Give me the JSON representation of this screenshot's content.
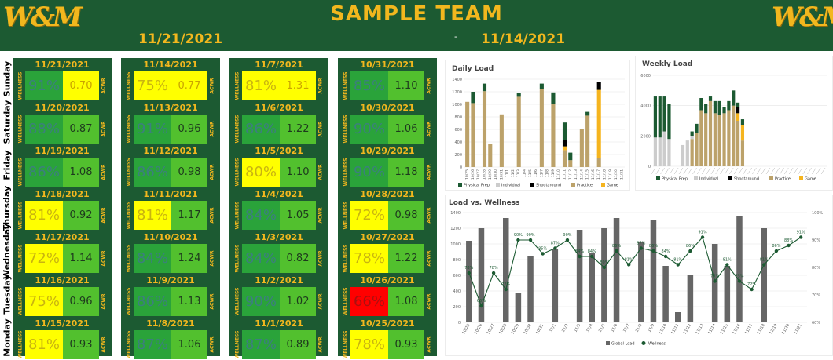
{
  "header": {
    "logo_text": "W&M",
    "title": "SAMPLE TEAM",
    "date_left": "11/21/2021",
    "separator": "-",
    "date_right": "11/14/2021"
  },
  "days": [
    "Sunday",
    "Saturday",
    "Friday",
    "Thursday",
    "Wednesday",
    "Tuesday",
    "Monday"
  ],
  "labels": {
    "wellness": "WELLNESS",
    "acwr": "ACWR"
  },
  "colors": {
    "dark_green": "#1c5a32",
    "gold": "#f2b71e",
    "wellness_yellow": "#ffff00",
    "acwr_green": "#52c02e",
    "wellness_green": "#2aa33a",
    "wellness_red": "#ff0000",
    "bar_gray": "#666666",
    "physical_prep": "#1c5a32",
    "individual": "#cccccc",
    "shootaround": "#000000",
    "practice": "#bca26a",
    "game": "#f5b41e"
  },
  "weeks": [
    {
      "cells": [
        {
          "date": "11/21/2021",
          "wellness": "91%",
          "acwr": "0.70",
          "wellness_color": "green",
          "acwr_color": "yellow"
        },
        {
          "date": "11/20/2021",
          "wellness": "88%",
          "acwr": "0.87",
          "wellness_color": "green",
          "acwr_color": "green"
        },
        {
          "date": "11/19/2021",
          "wellness": "86%",
          "acwr": "1.08",
          "wellness_color": "green",
          "acwr_color": "green"
        },
        {
          "date": "11/18/2021",
          "wellness": "81%",
          "acwr": "0.92",
          "wellness_color": "yellow",
          "acwr_color": "green"
        },
        {
          "date": "11/17/2021",
          "wellness": "72%",
          "acwr": "1.14",
          "wellness_color": "yellow",
          "acwr_color": "green"
        },
        {
          "date": "11/16/2021",
          "wellness": "75%",
          "acwr": "0.96",
          "wellness_color": "yellow",
          "acwr_color": "green"
        },
        {
          "date": "11/15/2021",
          "wellness": "81%",
          "acwr": "0.93",
          "wellness_color": "yellow",
          "acwr_color": "green"
        }
      ]
    },
    {
      "cells": [
        {
          "date": "11/14/2021",
          "wellness": "75%",
          "acwr": "0.77",
          "wellness_color": "yellow",
          "acwr_color": "yellow"
        },
        {
          "date": "11/13/2021",
          "wellness": "91%",
          "acwr": "0.96",
          "wellness_color": "green",
          "acwr_color": "green"
        },
        {
          "date": "11/12/2021",
          "wellness": "86%",
          "acwr": "0.98",
          "wellness_color": "green",
          "acwr_color": "green"
        },
        {
          "date": "11/11/2021",
          "wellness": "81%",
          "acwr": "1.17",
          "wellness_color": "yellow",
          "acwr_color": "green"
        },
        {
          "date": "11/10/2021",
          "wellness": "84%",
          "acwr": "1.24",
          "wellness_color": "green",
          "acwr_color": "green"
        },
        {
          "date": "11/9/2021",
          "wellness": "86%",
          "acwr": "1.13",
          "wellness_color": "green",
          "acwr_color": "green"
        },
        {
          "date": "11/8/2021",
          "wellness": "87%",
          "acwr": "1.06",
          "wellness_color": "green",
          "acwr_color": "green"
        }
      ]
    },
    {
      "cells": [
        {
          "date": "11/7/2021",
          "wellness": "81%",
          "acwr": "1.31",
          "wellness_color": "yellow",
          "acwr_color": "yellow"
        },
        {
          "date": "11/6/2021",
          "wellness": "86%",
          "acwr": "1.22",
          "wellness_color": "green",
          "acwr_color": "green"
        },
        {
          "date": "11/5/2021",
          "wellness": "80%",
          "acwr": "1.10",
          "wellness_color": "yellow",
          "acwr_color": "green"
        },
        {
          "date": "11/4/2021",
          "wellness": "84%",
          "acwr": "1.05",
          "wellness_color": "green",
          "acwr_color": "green"
        },
        {
          "date": "11/3/2021",
          "wellness": "84%",
          "acwr": "0.82",
          "wellness_color": "green",
          "acwr_color": "green"
        },
        {
          "date": "11/2/2021",
          "wellness": "90%",
          "acwr": "1.02",
          "wellness_color": "green",
          "acwr_color": "green"
        },
        {
          "date": "11/1/2021",
          "wellness": "87%",
          "acwr": "0.89",
          "wellness_color": "green",
          "acwr_color": "green"
        }
      ]
    },
    {
      "cells": [
        {
          "date": "10/31/2021",
          "wellness": "85%",
          "acwr": "1.10",
          "wellness_color": "green",
          "acwr_color": "green"
        },
        {
          "date": "10/30/2021",
          "wellness": "90%",
          "acwr": "1.06",
          "wellness_color": "green",
          "acwr_color": "green"
        },
        {
          "date": "10/29/2021",
          "wellness": "90%",
          "acwr": "1.18",
          "wellness_color": "green",
          "acwr_color": "green"
        },
        {
          "date": "10/28/2021",
          "wellness": "72%",
          "acwr": "0.98",
          "wellness_color": "yellow",
          "acwr_color": "green"
        },
        {
          "date": "10/27/2021",
          "wellness": "78%",
          "acwr": "1.22",
          "wellness_color": "yellow",
          "acwr_color": "green"
        },
        {
          "date": "10/26/2021",
          "wellness": "66%",
          "acwr": "1.08",
          "wellness_color": "red",
          "acwr_color": "green"
        },
        {
          "date": "10/25/2021",
          "wellness": "78%",
          "acwr": "0.93",
          "wellness_color": "yellow",
          "acwr_color": "green"
        }
      ]
    }
  ],
  "chart_data": [
    {
      "type": "bar",
      "title": "Daily Load",
      "stacked": true,
      "categories": [
        "10/25",
        "10/26",
        "10/27",
        "10/28",
        "10/29",
        "10/30",
        "10/31",
        "11/1",
        "11/2",
        "11/3",
        "11/4",
        "11/5",
        "11/6",
        "11/7",
        "11/8",
        "11/9",
        "11/10",
        "11/11",
        "11/12",
        "11/13",
        "11/14",
        "11/15",
        "11/16",
        "11/17",
        "11/18",
        "11/19",
        "11/20",
        "11/21"
      ],
      "ylim": [
        0,
        1400
      ],
      "yticks": [
        0,
        200,
        400,
        600,
        800,
        1000,
        1200,
        1400
      ],
      "series": [
        {
          "name": "Physical Prep",
          "values": [
            0,
            180,
            0,
            120,
            0,
            0,
            0,
            0,
            0,
            60,
            0,
            0,
            0,
            90,
            0,
            180,
            0,
            280,
            120,
            0,
            0,
            60,
            0,
            0,
            0,
            0,
            0,
            0
          ]
        },
        {
          "name": "Individual",
          "values": [
            0,
            0,
            0,
            0,
            0,
            0,
            0,
            0,
            0,
            0,
            0,
            0,
            0,
            0,
            0,
            0,
            0,
            0,
            0,
            0,
            0,
            0,
            0,
            0,
            0,
            0,
            0,
            0
          ]
        },
        {
          "name": "Shootaround",
          "values": [
            0,
            0,
            0,
            0,
            0,
            0,
            0,
            0,
            0,
            0,
            0,
            0,
            0,
            0,
            0,
            0,
            0,
            100,
            0,
            0,
            0,
            0,
            0,
            120,
            0,
            0,
            0,
            0
          ]
        },
        {
          "name": "Practice",
          "values": [
            1040,
            1020,
            0,
            1210,
            370,
            0,
            840,
            0,
            0,
            1120,
            0,
            0,
            0,
            1240,
            0,
            1010,
            0,
            270,
            110,
            0,
            600,
            820,
            0,
            150,
            0,
            0,
            0,
            0
          ]
        },
        {
          "name": "Game",
          "values": [
            0,
            0,
            0,
            0,
            0,
            0,
            0,
            0,
            0,
            0,
            0,
            0,
            0,
            0,
            0,
            0,
            0,
            60,
            0,
            0,
            0,
            0,
            0,
            1080,
            0,
            0,
            0,
            0
          ]
        }
      ]
    },
    {
      "type": "bar",
      "title": "Weekly Load",
      "stacked": true,
      "ylim": [
        0,
        6000
      ],
      "yticks": [
        0,
        2000,
        4000,
        6000
      ],
      "series": [
        {
          "name": "Physical Prep",
          "values": [
            2700,
            2700,
            2300,
            2300,
            0,
            0,
            0,
            0,
            300,
            600,
            800,
            600,
            300,
            800,
            900,
            400,
            600,
            1000,
            300,
            400
          ]
        },
        {
          "name": "Individual",
          "values": [
            1900,
            1900,
            2300,
            1800,
            0,
            0,
            1400,
            1700,
            200,
            0,
            0,
            0,
            0,
            0,
            0,
            0,
            0,
            0,
            0,
            0
          ]
        },
        {
          "name": "Shootaround",
          "values": [
            0,
            0,
            0,
            0,
            0,
            0,
            0,
            0,
            0,
            0,
            0,
            0,
            0,
            0,
            0,
            0,
            0,
            0,
            400,
            0
          ]
        },
        {
          "name": "Practice",
          "values": [
            0,
            0,
            0,
            0,
            0,
            0,
            0,
            0,
            1800,
            2200,
            3700,
            3500,
            4300,
            3500,
            3400,
            3500,
            3700,
            4000,
            3000,
            1700
          ]
        },
        {
          "name": "Game",
          "values": [
            0,
            0,
            0,
            0,
            0,
            0,
            0,
            0,
            0,
            0,
            0,
            0,
            0,
            0,
            0,
            0,
            0,
            0,
            500,
            1000
          ]
        }
      ],
      "legend": [
        "Physical Prep",
        "Individual",
        "Shootaround",
        "Practice",
        "Game"
      ]
    },
    {
      "type": "bar",
      "title": "Load vs. Wellness",
      "categories": [
        "10/25",
        "10/26",
        "10/27",
        "10/28",
        "10/29",
        "10/30",
        "10/31",
        "11/1",
        "11/2",
        "11/3",
        "11/4",
        "11/5",
        "11/6",
        "11/7",
        "11/8",
        "11/9",
        "11/10",
        "11/11",
        "11/12",
        "11/13",
        "11/14",
        "11/15",
        "11/16",
        "11/17",
        "11/18",
        "11/19",
        "11/20",
        "11/21"
      ],
      "ylim": [
        0,
        1400
      ],
      "yticks": [
        0,
        200,
        400,
        600,
        800,
        1000,
        1200,
        1400
      ],
      "y2lim": [
        60,
        100
      ],
      "y2ticks": [
        "60%",
        "70%",
        "80%",
        "90%",
        "100%"
      ],
      "series": [
        {
          "name": "Global Load",
          "values": [
            1040,
            1200,
            0,
            1330,
            370,
            840,
            0,
            940,
            0,
            1180,
            880,
            1200,
            1330,
            0,
            1030,
            1310,
            720,
            130,
            600,
            0,
            1000,
            720,
            1350,
            0,
            1200,
            0,
            0,
            0
          ]
        },
        {
          "name": "Wellness",
          "values": [
            78,
            66,
            78,
            72,
            90,
            90,
            85,
            87,
            90,
            84,
            84,
            80,
            86,
            81,
            87,
            86,
            84,
            81,
            86,
            91,
            75,
            81,
            75,
            72,
            81,
            86,
            88,
            91
          ],
          "labels": [
            "78%",
            "66%",
            "78%",
            "72%",
            "90%",
            "90%",
            "85%",
            "87%",
            "90%",
            "84%",
            "84%",
            "80%",
            "86%",
            "81%",
            "87%",
            "86%",
            "84%",
            "81%",
            "86%",
            "91%",
            "75%",
            "81%",
            "75%",
            "72%",
            "81%",
            "86%",
            "88%",
            "91%"
          ]
        }
      ],
      "legend": [
        "Global Load",
        "Wellness"
      ]
    }
  ]
}
